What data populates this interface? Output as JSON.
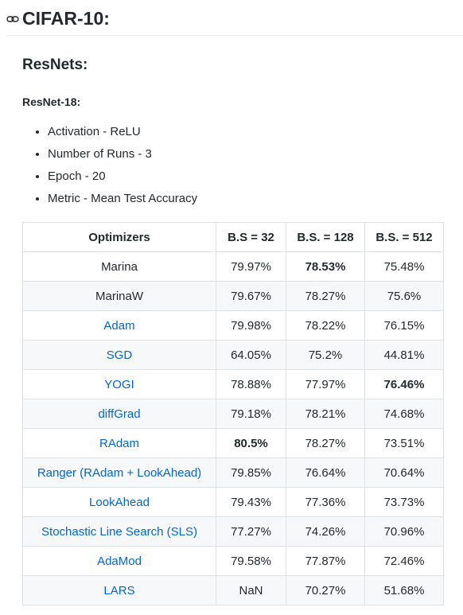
{
  "heading": "CIFAR-10:",
  "subheading": "ResNets:",
  "model": "ResNet-18:",
  "list": [
    "Activation - ReLU",
    "Number of Runs - 3",
    "Epoch - 20",
    "Metric - Mean Test Accuracy"
  ],
  "table": {
    "header": [
      "Optimizers",
      "B.S = 32",
      "B.S. = 128",
      "B.S. = 512"
    ],
    "rows": [
      [
        "Marina",
        "79.97%",
        "78.53%",
        "75.48%"
      ],
      [
        "MarinaW",
        "79.67%",
        "78.27%",
        "75.6%"
      ],
      [
        "Adam",
        "79.98%",
        "78.22%",
        "76.15%"
      ],
      [
        "SGD",
        "64.05%",
        "75.2%",
        "44.81%"
      ],
      [
        "YOGI",
        "78.88%",
        "77.97%",
        "76.46%"
      ],
      [
        "diffGrad",
        "79.18%",
        "78.21%",
        "74.68%"
      ],
      [
        "RAdam",
        "80.5%",
        "78.27%",
        "73.51%"
      ],
      [
        "Ranger (RAdam + LookAhead)",
        "79.85%",
        "76.64%",
        "70.64%"
      ],
      [
        "LookAhead",
        "79.43%",
        "77.36%",
        "73.73%"
      ],
      [
        "Stochastic Line Search (SLS)",
        "77.27%",
        "74.26%",
        "70.96%"
      ],
      [
        "AdaMod",
        "79.58%",
        "77.87%",
        "72.46%"
      ],
      [
        "LARS",
        "NaN",
        "70.27%",
        "51.68%"
      ]
    ]
  }
}
